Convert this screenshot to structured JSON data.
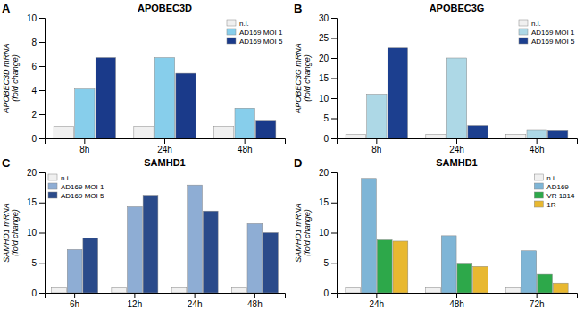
{
  "chart_data": [
    {
      "type": "bar",
      "title": "APOBEC3D",
      "ylabel": "APOBEC3D mRNA\n(fold change)",
      "annotations": [
        "A"
      ],
      "categories": [
        "8h",
        "24h",
        "48h"
      ],
      "series": [
        {
          "name": "n.i.",
          "color": "#f0f0f0",
          "values": [
            1.0,
            1.0,
            1.0
          ]
        },
        {
          "name": "AD169 MOI 1",
          "color": "#87CEEB",
          "values": [
            4.1,
            6.7,
            2.5
          ]
        },
        {
          "name": "AD169 MOI 5",
          "color": "#1a3a8a",
          "values": [
            6.7,
            5.4,
            1.5
          ]
        }
      ],
      "ylim": [
        0,
        10
      ],
      "yticks": [
        0,
        2,
        4,
        6,
        8,
        10
      ],
      "grid": false,
      "legend": "upper right"
    },
    {
      "type": "bar",
      "title": "APOBEC3G",
      "ylabel": "APOBEC3G mRNA\n(fold change)",
      "annotations": [
        "B"
      ],
      "categories": [
        "8h",
        "24h",
        "48h"
      ],
      "series": [
        {
          "name": "n.i.",
          "color": "#f0f0f0",
          "values": [
            1.0,
            1.0,
            1.0
          ]
        },
        {
          "name": "AD169 MOI 1",
          "color": "#add8e6",
          "values": [
            11.0,
            20.0,
            2.0
          ]
        },
        {
          "name": "AD169 MOI 5",
          "color": "#1c3f8f",
          "values": [
            22.5,
            3.2,
            1.9
          ]
        }
      ],
      "ylim": [
        0,
        30
      ],
      "yticks": [
        0,
        5,
        10,
        15,
        20,
        25,
        30
      ],
      "grid": false,
      "legend": "upper right"
    },
    {
      "type": "bar",
      "title": "SAMHD1",
      "ylabel": "SAMHD1 mRNA\n(fold change)",
      "annotations": [
        "C"
      ],
      "categories": [
        "6h",
        "12h",
        "24h",
        "48h"
      ],
      "series": [
        {
          "name": "n i.",
          "color": "#f0f0f0",
          "values": [
            1.0,
            1.0,
            1.0,
            1.0
          ]
        },
        {
          "name": "AD169 MOI 1",
          "color": "#8eadd4",
          "values": [
            7.2,
            14.3,
            17.9,
            11.5
          ]
        },
        {
          "name": "AD169 MOI 5",
          "color": "#2a4a8a",
          "values": [
            9.1,
            16.2,
            13.6,
            10.0
          ]
        }
      ],
      "ylim": [
        0,
        20
      ],
      "yticks": [
        0,
        5,
        10,
        15,
        20
      ],
      "grid": false,
      "legend": "upper left"
    },
    {
      "type": "bar",
      "title": "SAMHD1",
      "ylabel": "SAMHD1 mRNA\n(fold change)",
      "annotations": [
        "D"
      ],
      "categories": [
        "24h",
        "48h",
        "72h"
      ],
      "series": [
        {
          "name": "n.i.",
          "color": "#f0f0f0",
          "values": [
            1.0,
            1.0,
            1.0
          ]
        },
        {
          "name": "AD169",
          "color": "#7eb5d6",
          "values": [
            19.0,
            9.5,
            7.0
          ]
        },
        {
          "name": "VR 1814",
          "color": "#2da84a",
          "values": [
            8.8,
            4.8,
            3.1
          ]
        },
        {
          "name": "1R",
          "color": "#e8b830",
          "values": [
            8.6,
            4.4,
            1.6
          ]
        }
      ],
      "ylim": [
        0,
        20
      ],
      "yticks": [
        0,
        5,
        10,
        15,
        20
      ],
      "grid": false,
      "legend": "upper right"
    }
  ]
}
